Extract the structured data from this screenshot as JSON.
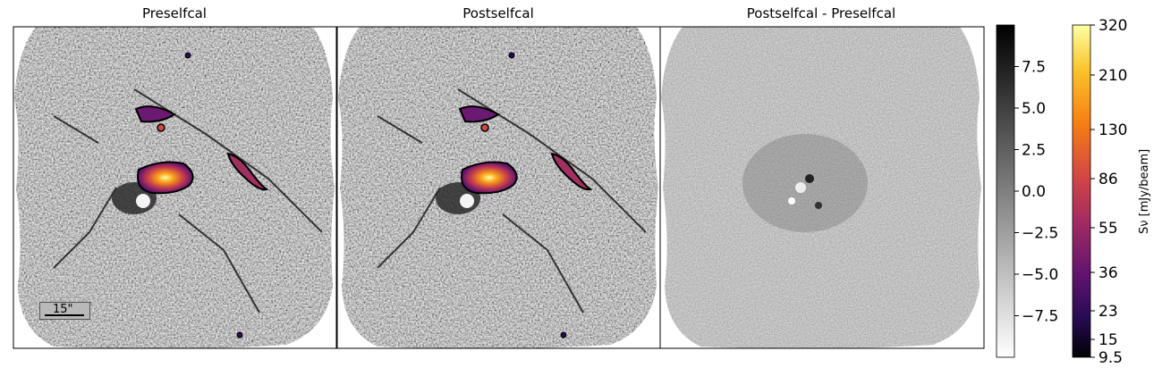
{
  "panels": [
    {
      "title": "Preselfcal"
    },
    {
      "title": "Postselfcal"
    },
    {
      "title": "Postselfcal - Preselfcal"
    }
  ],
  "scalebar": {
    "label": "15\""
  },
  "colorbar_gray": {
    "ticks": [
      "7.5",
      "5.0",
      "2.5",
      "0.0",
      "−2.5",
      "−5.0",
      "−7.5"
    ],
    "values": [
      7.5,
      5.0,
      2.5,
      0.0,
      -2.5,
      -5.0,
      -7.5
    ],
    "range": [
      -10,
      10
    ]
  },
  "colorbar_inferno": {
    "label": "Sν [mJy/beam]",
    "ticks": [
      "320",
      "210",
      "130",
      "86",
      "55",
      "36",
      "23",
      "15",
      "9.5"
    ],
    "colors": [
      "#fcffa4",
      "#fac228",
      "#f57d15",
      "#d44842",
      "#9f2a63",
      "#65156e",
      "#280b53",
      "#000004"
    ]
  }
}
